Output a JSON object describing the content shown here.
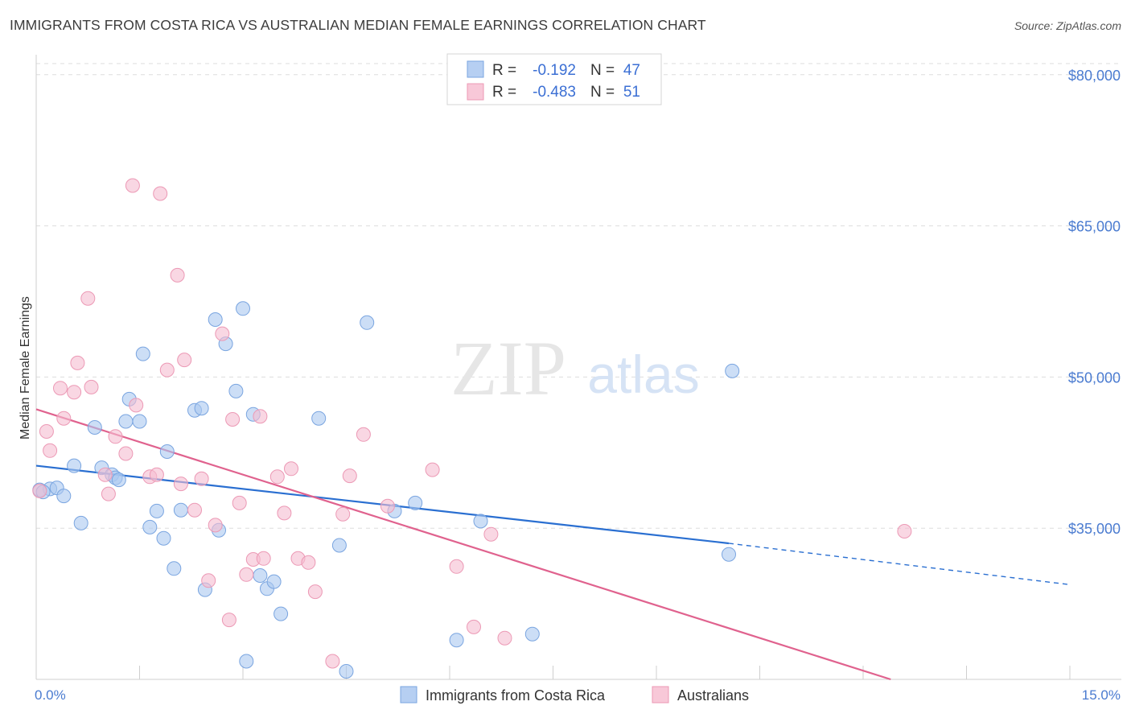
{
  "title": "IMMIGRANTS FROM COSTA RICA VS AUSTRALIAN MEDIAN FEMALE EARNINGS CORRELATION CHART",
  "source": "Source: ZipAtlas.com",
  "watermark": {
    "zip": "ZIP",
    "atlas": "atlas"
  },
  "colors": {
    "blue_fill": "#aac8f0",
    "blue_stroke": "#7aa5e0",
    "blue_line": "#2a6fd1",
    "pink_fill": "#f5bdd0",
    "pink_stroke": "#ec99b5",
    "pink_line": "#e0628e",
    "grid": "#dddddd",
    "tick_label": "#4a7bd0"
  },
  "legend": {
    "series": [
      {
        "r_label": "R =",
        "r_value": "-0.192",
        "n_label": "N =",
        "n_value": "47"
      },
      {
        "r_label": "R =",
        "r_value": "-0.483",
        "n_label": "N =",
        "n_value": "51"
      }
    ]
  },
  "chart_data": {
    "type": "scatter",
    "title": "IMMIGRANTS FROM COSTA RICA VS AUSTRALIAN MEDIAN FEMALE EARNINGS CORRELATION CHART",
    "xlabel": "",
    "ylabel": "Median Female Earnings",
    "xlim": [
      0,
      15
    ],
    "ylim": [
      20000,
      81500
    ],
    "x_tick_labels": [
      "0.0%",
      "15.0%"
    ],
    "y_ticks": [
      {
        "value": 35000,
        "label": "$35,000"
      },
      {
        "value": 50000,
        "label": "$50,000"
      },
      {
        "value": 65000,
        "label": "$65,000"
      },
      {
        "value": 80000,
        "label": "$80,000"
      }
    ],
    "grid": true,
    "series": [
      {
        "name": "Immigrants from Costa Rica",
        "color": "blue",
        "points": [
          [
            0.05,
            38800
          ],
          [
            0.2,
            38900
          ],
          [
            0.3,
            39000
          ],
          [
            0.4,
            38200
          ],
          [
            0.55,
            41200
          ],
          [
            0.65,
            35500
          ],
          [
            0.85,
            45000
          ],
          [
            0.95,
            41000
          ],
          [
            1.1,
            40300
          ],
          [
            1.15,
            40000
          ],
          [
            1.2,
            39800
          ],
          [
            1.3,
            45600
          ],
          [
            1.35,
            47800
          ],
          [
            1.5,
            45600
          ],
          [
            1.55,
            52300
          ],
          [
            1.65,
            35100
          ],
          [
            1.75,
            36700
          ],
          [
            1.85,
            34000
          ],
          [
            1.9,
            42600
          ],
          [
            2.0,
            31000
          ],
          [
            2.1,
            36800
          ],
          [
            2.3,
            46700
          ],
          [
            2.4,
            46900
          ],
          [
            2.45,
            28900
          ],
          [
            2.6,
            55700
          ],
          [
            2.65,
            34800
          ],
          [
            2.75,
            53300
          ],
          [
            2.9,
            48600
          ],
          [
            3.0,
            56800
          ],
          [
            3.05,
            21800
          ],
          [
            3.15,
            46300
          ],
          [
            3.25,
            30300
          ],
          [
            3.35,
            29000
          ],
          [
            3.45,
            29700
          ],
          [
            3.55,
            26500
          ],
          [
            4.1,
            45900
          ],
          [
            4.4,
            33300
          ],
          [
            4.5,
            20800
          ],
          [
            4.8,
            55400
          ],
          [
            5.2,
            36700
          ],
          [
            5.5,
            37500
          ],
          [
            6.1,
            23900
          ],
          [
            6.45,
            35700
          ],
          [
            7.2,
            24500
          ],
          [
            10.05,
            32400
          ],
          [
            10.1,
            50600
          ],
          [
            0.1,
            38600
          ]
        ],
        "trend": {
          "x": [
            0,
            10.05
          ],
          "y": [
            41200,
            33500
          ]
        },
        "trend_dashed": {
          "x": [
            10.05,
            15
          ],
          "y": [
            33500,
            29400
          ]
        }
      },
      {
        "name": "Australians",
        "color": "pink",
        "points": [
          [
            0.05,
            38700
          ],
          [
            0.15,
            44600
          ],
          [
            0.2,
            42700
          ],
          [
            0.35,
            48900
          ],
          [
            0.4,
            45900
          ],
          [
            0.55,
            48500
          ],
          [
            0.6,
            51400
          ],
          [
            0.75,
            57800
          ],
          [
            0.8,
            49000
          ],
          [
            1.0,
            40300
          ],
          [
            1.05,
            38400
          ],
          [
            1.15,
            44100
          ],
          [
            1.3,
            42400
          ],
          [
            1.4,
            69000
          ],
          [
            1.45,
            47200
          ],
          [
            1.65,
            40100
          ],
          [
            1.75,
            40300
          ],
          [
            1.8,
            68200
          ],
          [
            1.9,
            50700
          ],
          [
            2.05,
            60100
          ],
          [
            2.1,
            39400
          ],
          [
            2.15,
            51700
          ],
          [
            2.3,
            36800
          ],
          [
            2.4,
            39900
          ],
          [
            2.5,
            29800
          ],
          [
            2.6,
            35300
          ],
          [
            2.7,
            54300
          ],
          [
            2.8,
            25900
          ],
          [
            2.85,
            45800
          ],
          [
            2.95,
            37500
          ],
          [
            3.05,
            30400
          ],
          [
            3.15,
            31900
          ],
          [
            3.25,
            46100
          ],
          [
            3.3,
            32000
          ],
          [
            3.5,
            40100
          ],
          [
            3.6,
            36500
          ],
          [
            3.7,
            40900
          ],
          [
            3.8,
            32000
          ],
          [
            3.95,
            31600
          ],
          [
            4.05,
            28700
          ],
          [
            4.3,
            21800
          ],
          [
            4.45,
            36400
          ],
          [
            4.55,
            40200
          ],
          [
            4.75,
            44300
          ],
          [
            5.1,
            37200
          ],
          [
            5.75,
            40800
          ],
          [
            6.1,
            31200
          ],
          [
            6.35,
            25200
          ],
          [
            6.6,
            34400
          ],
          [
            6.8,
            24100
          ],
          [
            12.6,
            34700
          ]
        ],
        "trend": {
          "x": [
            0,
            12.4
          ],
          "y": [
            46800,
            20000
          ]
        }
      }
    ]
  }
}
